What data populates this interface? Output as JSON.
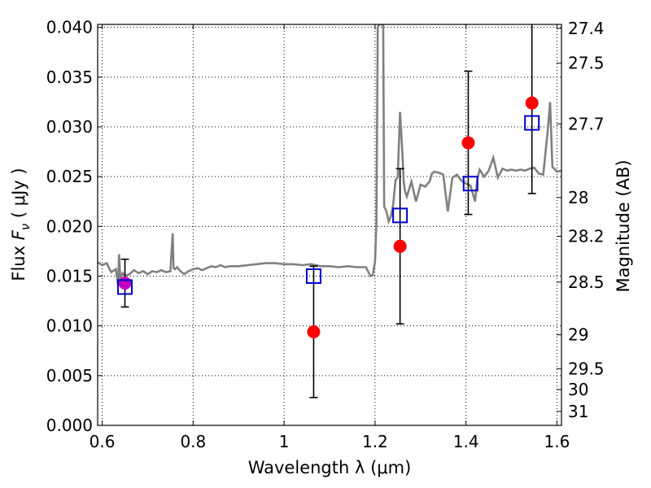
{
  "chart_data": {
    "type": "scatter",
    "title": "",
    "xlabel": "Wavelength  λ (μm)",
    "ylabel": "Flux  F_ν  ( μJy )",
    "ylabel_parts": {
      "pre": "Flux  ",
      "sym": "F",
      "sub": "ν",
      "post": "  ( μJy )"
    },
    "y2label": "Magnitude (AB)",
    "xlim": [
      0.59,
      1.61
    ],
    "ylim": [
      0.0,
      0.0403
    ],
    "grid": true,
    "x_ticks": [
      {
        "v": 0.6,
        "label": "0.6"
      },
      {
        "v": 0.8,
        "label": "0.8"
      },
      {
        "v": 1.0,
        "label": "1"
      },
      {
        "v": 1.2,
        "label": "1.2"
      },
      {
        "v": 1.4,
        "label": "1.4"
      },
      {
        "v": 1.6,
        "label": "1.6"
      }
    ],
    "y_ticks": [
      {
        "v": 0.0,
        "label": "0.000"
      },
      {
        "v": 0.005,
        "label": "0.005"
      },
      {
        "v": 0.01,
        "label": "0.010"
      },
      {
        "v": 0.015,
        "label": "0.015"
      },
      {
        "v": 0.02,
        "label": "0.020"
      },
      {
        "v": 0.025,
        "label": "0.025"
      },
      {
        "v": 0.03,
        "label": "0.030"
      },
      {
        "v": 0.035,
        "label": "0.035"
      },
      {
        "v": 0.04,
        "label": "0.040"
      }
    ],
    "mag_ticks": [
      {
        "v": 0.0399,
        "label": "27.4"
      },
      {
        "v": 0.0364,
        "label": "27.5"
      },
      {
        "v": 0.0303,
        "label": "27.7"
      },
      {
        "v": 0.0229,
        "label": "28"
      },
      {
        "v": 0.019,
        "label": "28.2"
      },
      {
        "v": 0.0144,
        "label": "28.5"
      },
      {
        "v": 0.0091,
        "label": "29"
      },
      {
        "v": 0.0057,
        "label": "29.5"
      },
      {
        "v": 0.0036,
        "label": "30"
      },
      {
        "v": 0.0014,
        "label": "31"
      }
    ],
    "model_spectrum": {
      "color": "#808080",
      "x": [
        0.59,
        0.6,
        0.61,
        0.615,
        0.62,
        0.63,
        0.635,
        0.637,
        0.64,
        0.645,
        0.65,
        0.66,
        0.67,
        0.68,
        0.69,
        0.7,
        0.71,
        0.72,
        0.73,
        0.74,
        0.75,
        0.755,
        0.757,
        0.76,
        0.765,
        0.77,
        0.78,
        0.79,
        0.8,
        0.81,
        0.82,
        0.83,
        0.84,
        0.85,
        0.86,
        0.87,
        0.88,
        0.9,
        0.92,
        0.94,
        0.96,
        0.98,
        1.0,
        1.02,
        1.04,
        1.06,
        1.08,
        1.1,
        1.12,
        1.14,
        1.16,
        1.18,
        1.19,
        1.195,
        1.2,
        1.203,
        1.206,
        1.209,
        1.21,
        1.212,
        1.215,
        1.218,
        1.22,
        1.225,
        1.23,
        1.235,
        1.24,
        1.245,
        1.25,
        1.255,
        1.26,
        1.263,
        1.266,
        1.27,
        1.28,
        1.29,
        1.3,
        1.31,
        1.32,
        1.325,
        1.33,
        1.34,
        1.35,
        1.36,
        1.37,
        1.38,
        1.39,
        1.4,
        1.41,
        1.42,
        1.425,
        1.43,
        1.44,
        1.45,
        1.46,
        1.47,
        1.48,
        1.49,
        1.5,
        1.51,
        1.52,
        1.53,
        1.54,
        1.55,
        1.56,
        1.57,
        1.58,
        1.585,
        1.59,
        1.6,
        1.61
      ],
      "y": [
        0.0164,
        0.0161,
        0.0163,
        0.0158,
        0.0154,
        0.0157,
        0.0141,
        0.0172,
        0.0147,
        0.0153,
        0.015,
        0.0152,
        0.0156,
        0.0153,
        0.0155,
        0.0152,
        0.0155,
        0.0154,
        0.0156,
        0.0154,
        0.0155,
        0.0193,
        0.0158,
        0.0157,
        0.0159,
        0.0156,
        0.0152,
        0.0155,
        0.0157,
        0.0158,
        0.0156,
        0.0158,
        0.016,
        0.0159,
        0.0161,
        0.0159,
        0.016,
        0.016,
        0.0161,
        0.0162,
        0.0163,
        0.0163,
        0.0162,
        0.0162,
        0.0161,
        0.0162,
        0.016,
        0.016,
        0.0159,
        0.016,
        0.0159,
        0.0159,
        0.015,
        0.0151,
        0.0165,
        0.0205,
        0.04,
        0.0403,
        0.0403,
        0.0403,
        0.0403,
        0.0403,
        0.022,
        0.0215,
        0.0205,
        0.021,
        0.0222,
        0.0246,
        0.025,
        0.0315,
        0.0275,
        0.0245,
        0.0235,
        0.023,
        0.0245,
        0.0225,
        0.0242,
        0.024,
        0.0245,
        0.0253,
        0.0255,
        0.0254,
        0.0252,
        0.0215,
        0.0249,
        0.0252,
        0.0246,
        0.0243,
        0.0241,
        0.0225,
        0.0248,
        0.0257,
        0.025,
        0.0256,
        0.0269,
        0.0249,
        0.0258,
        0.0256,
        0.0257,
        0.0256,
        0.0257,
        0.0256,
        0.0258,
        0.0259,
        0.0253,
        0.0252,
        0.0297,
        0.0325,
        0.026,
        0.0255,
        0.0256
      ]
    },
    "series": [
      {
        "marker": "circle",
        "color": "#ff0000",
        "x": [
          1.065,
          1.255,
          1.405,
          1.545
        ],
        "y": [
          0.0094,
          0.018,
          0.0284,
          0.0324
        ],
        "err": [
          0.0066,
          0.0078,
          0.0072,
          0.0091
        ]
      },
      {
        "marker": "circle",
        "color": "#bf00bf",
        "x": [
          0.65
        ],
        "y": [
          0.0143
        ],
        "err": [
          0.0024
        ]
      },
      {
        "marker": "square-open",
        "color": "#0000cc",
        "x": [
          0.65,
          1.065,
          1.255,
          1.41,
          1.545
        ],
        "y": [
          0.0139,
          0.015,
          0.0211,
          0.0243,
          0.0304
        ]
      }
    ]
  }
}
